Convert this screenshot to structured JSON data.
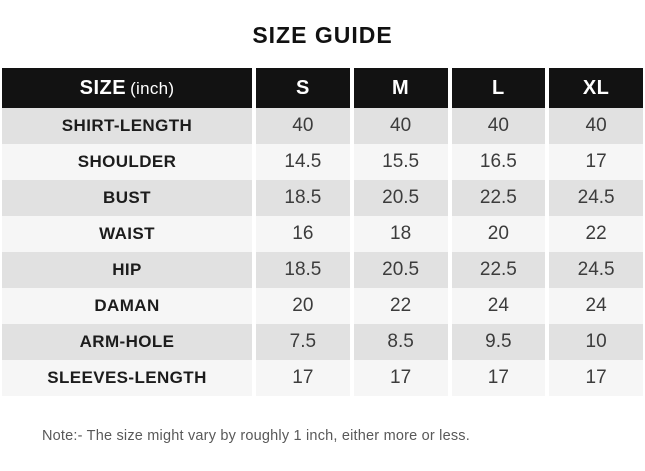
{
  "page": {
    "title": "SIZE GUIDE",
    "note": "Note:- The size might vary by roughly 1 inch, either more or less."
  },
  "table": {
    "header": {
      "label": "SIZE",
      "label_suffix": "(inch)",
      "sizes": [
        "S",
        "M",
        "L",
        "XL"
      ]
    },
    "rows": [
      {
        "label": "SHIRT-LENGTH",
        "values": [
          "40",
          "40",
          "40",
          "40"
        ]
      },
      {
        "label": "SHOULDER",
        "values": [
          "14.5",
          "15.5",
          "16.5",
          "17"
        ]
      },
      {
        "label": "BUST",
        "values": [
          "18.5",
          "20.5",
          "22.5",
          "24.5"
        ]
      },
      {
        "label": "WAIST",
        "values": [
          "16",
          "18",
          "20",
          "22"
        ]
      },
      {
        "label": "HIP",
        "values": [
          "18.5",
          "20.5",
          "22.5",
          "24.5"
        ]
      },
      {
        "label": "DAMAN",
        "values": [
          "20",
          "22",
          "24",
          "24"
        ]
      },
      {
        "label": "ARM-HOLE",
        "values": [
          "7.5",
          "8.5",
          "9.5",
          "10"
        ]
      },
      {
        "label": "SLEEVES-LENGTH",
        "values": [
          "17",
          "17",
          "17",
          "17"
        ]
      }
    ]
  },
  "colors": {
    "header_bg": "#121212",
    "header_text": "#ffffff",
    "row_alt_bg": "#e1e1e1",
    "row_bg": "#f6f6f6",
    "label_text": "#1c1c1c",
    "value_text": "#3c3c3c",
    "note_text": "#595959",
    "page_bg": "#ffffff"
  }
}
